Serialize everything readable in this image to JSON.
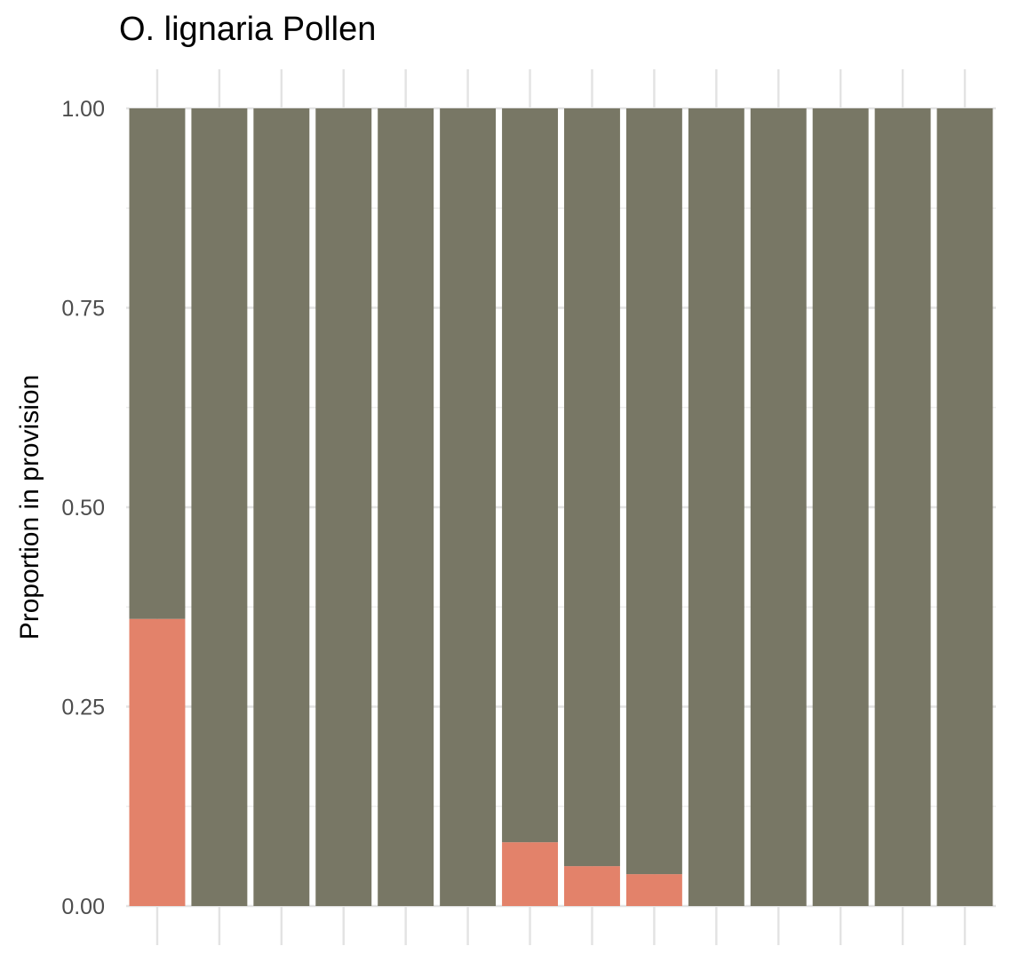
{
  "chart_data": {
    "type": "bar",
    "stacked": true,
    "title": "O. lignaria Pollen",
    "xlabel": "",
    "ylabel": "Proportion in provision",
    "ylim": [
      0,
      1
    ],
    "yticks": [
      "0.00",
      "0.25",
      "0.50",
      "0.75",
      "1.00"
    ],
    "ytick_values": [
      0,
      0.25,
      0.5,
      0.75,
      1.0
    ],
    "categories": [
      "",
      "",
      "",
      "",
      "",
      "",
      "",
      "",
      "",
      "",
      "",
      "",
      "",
      ""
    ],
    "series": [
      {
        "color": "#E3826A",
        "values": [
          0.36,
          0,
          0,
          0,
          0,
          0,
          0.08,
          0.05,
          0.04,
          0,
          0,
          0,
          0,
          0
        ]
      },
      {
        "color": "#787765",
        "values": [
          0.64,
          1,
          1,
          1,
          1,
          1,
          0.92,
          0.95,
          0.96,
          1,
          1,
          1,
          1,
          1
        ]
      }
    ],
    "grid": true,
    "legend": "none"
  }
}
